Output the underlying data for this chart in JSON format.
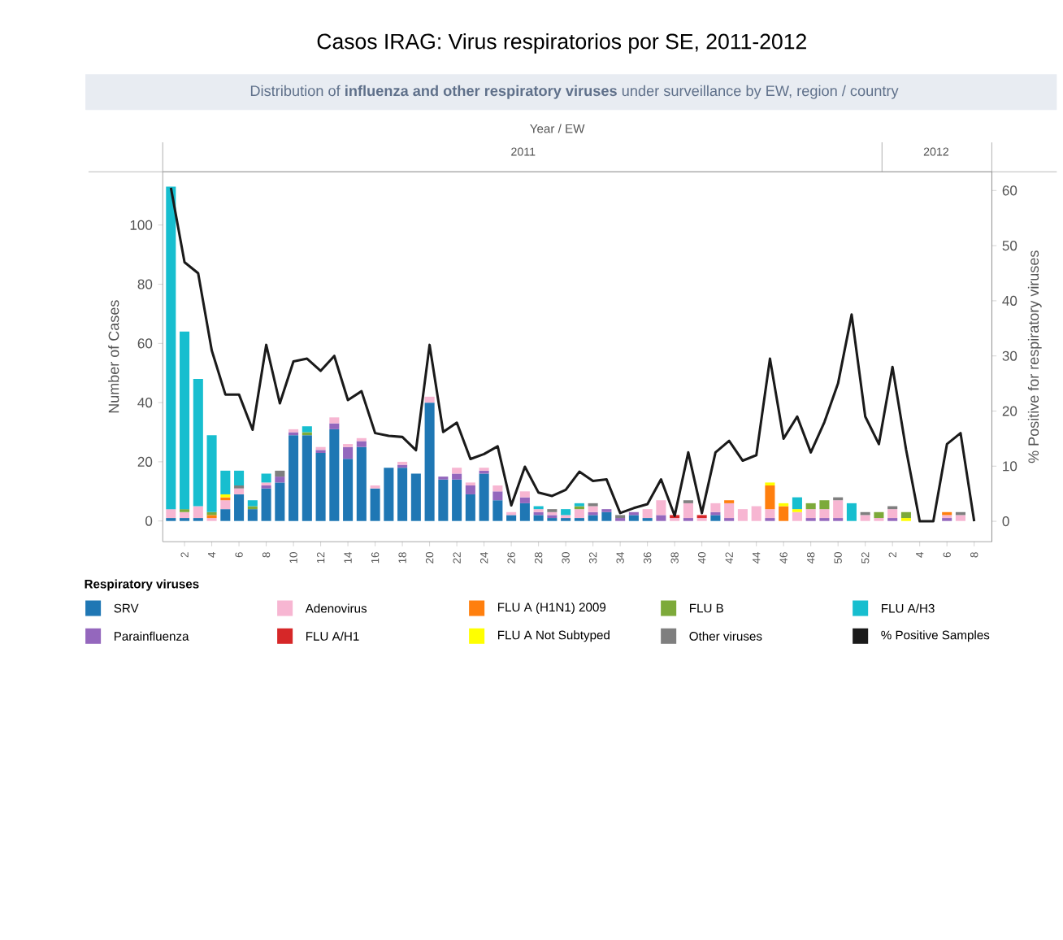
{
  "chart_data": {
    "type": "bar",
    "stacked": true,
    "title": "Casos IRAG: Virus respiratorios por SE, 2011-2012",
    "subtitle": "Distribution of **influenza and other respiratory viruses** under surveillance by EW, region / country",
    "xlabel": "Year / EW",
    "ylabel": "Number of Cases",
    "y2label": "% Positive for respiratory viruses",
    "legend_title": "Respiratory viruses",
    "legend": "bottom",
    "annotations": [
      "2011",
      "2012"
    ],
    "categories": [
      null,
      "2",
      null,
      "4",
      null,
      "6",
      null,
      "8",
      null,
      "10",
      null,
      "12",
      null,
      "14",
      null,
      "16",
      null,
      "18",
      null,
      "20",
      null,
      "22",
      null,
      "24",
      null,
      "26",
      null,
      "28",
      null,
      "30",
      null,
      "32",
      null,
      "34",
      null,
      "36",
      null,
      "38",
      null,
      "40",
      null,
      "42",
      null,
      "44",
      null,
      "46",
      null,
      "48",
      null,
      "50",
      null,
      "52",
      null,
      "2",
      null,
      "4",
      null,
      "6",
      null,
      "8"
    ],
    "ylim": [
      -7,
      118
    ],
    "yticks": [
      0,
      20,
      40,
      60,
      80,
      100
    ],
    "y2lim": [
      -3.7,
      63.4
    ],
    "y2ticks": [
      0,
      10,
      20,
      30,
      40,
      50,
      60
    ],
    "series": [
      {
        "name": "SRV",
        "color": "#1f77b4",
        "values": [
          1,
          1,
          1,
          null,
          4,
          9,
          4,
          11,
          13,
          29,
          29,
          23,
          31,
          21,
          25,
          11,
          18,
          18,
          16,
          40,
          14,
          14,
          9,
          16,
          7,
          2,
          6,
          2,
          1,
          1,
          1,
          2,
          3,
          null,
          2,
          1,
          null,
          null,
          null,
          null,
          2,
          null,
          null,
          null,
          null,
          null,
          null,
          null,
          null,
          null,
          null,
          null,
          null,
          null,
          null,
          null,
          null,
          null,
          null,
          null
        ]
      },
      {
        "name": "Parainfluenza",
        "color": "#9467bd",
        "values": [
          null,
          null,
          null,
          null,
          null,
          null,
          null,
          1,
          2,
          1,
          null,
          1,
          2,
          4,
          2,
          null,
          null,
          1,
          null,
          null,
          1,
          2,
          3,
          1,
          3,
          null,
          2,
          1,
          1,
          null,
          null,
          1,
          1,
          1,
          1,
          null,
          2,
          null,
          1,
          null,
          1,
          1,
          null,
          null,
          1,
          null,
          null,
          1,
          1,
          1,
          null,
          null,
          null,
          1,
          null,
          null,
          null,
          1,
          null,
          null
        ]
      },
      {
        "name": "Adenovirus",
        "color": "#f7b6d2",
        "values": [
          3,
          2,
          4,
          1,
          3,
          2,
          null,
          1,
          null,
          1,
          null,
          1,
          2,
          1,
          1,
          1,
          null,
          1,
          null,
          2,
          null,
          2,
          1,
          1,
          2,
          1,
          2,
          1,
          1,
          1,
          3,
          2,
          null,
          null,
          null,
          3,
          5,
          1,
          5,
          1,
          3,
          5,
          4,
          5,
          3,
          null,
          3,
          3,
          3,
          6,
          null,
          2,
          1,
          3,
          null,
          null,
          null,
          1,
          2,
          null
        ]
      },
      {
        "name": "FLU A/H1",
        "color": "#d62728",
        "values": [
          null,
          null,
          null,
          null,
          null,
          null,
          null,
          null,
          null,
          null,
          null,
          null,
          null,
          null,
          null,
          null,
          null,
          null,
          null,
          null,
          null,
          null,
          null,
          null,
          null,
          null,
          null,
          null,
          null,
          null,
          null,
          null,
          null,
          null,
          null,
          null,
          null,
          1,
          null,
          1,
          null,
          null,
          null,
          null,
          null,
          null,
          null,
          null,
          null,
          null,
          null,
          null,
          null,
          null,
          null,
          null,
          null,
          null,
          null,
          null
        ]
      },
      {
        "name": "FLU A (H1N1) 2009",
        "color": "#ff7f0e",
        "values": [
          null,
          null,
          null,
          1,
          1,
          null,
          null,
          null,
          null,
          null,
          null,
          null,
          null,
          null,
          null,
          null,
          null,
          null,
          null,
          null,
          null,
          null,
          null,
          null,
          null,
          null,
          null,
          null,
          null,
          null,
          null,
          null,
          null,
          null,
          null,
          null,
          null,
          null,
          null,
          null,
          null,
          1,
          null,
          null,
          8,
          5,
          null,
          null,
          null,
          null,
          null,
          null,
          null,
          null,
          null,
          null,
          null,
          1,
          null,
          null
        ]
      },
      {
        "name": "FLU A Not Subtyped",
        "color": "#ffff00",
        "values": [
          null,
          null,
          null,
          null,
          1,
          null,
          null,
          null,
          null,
          null,
          null,
          null,
          null,
          null,
          null,
          null,
          null,
          null,
          null,
          null,
          null,
          null,
          null,
          null,
          null,
          null,
          null,
          null,
          null,
          null,
          null,
          null,
          null,
          null,
          null,
          null,
          null,
          null,
          null,
          null,
          null,
          null,
          null,
          null,
          1,
          1,
          1,
          null,
          null,
          null,
          null,
          null,
          null,
          null,
          1,
          null,
          null,
          null,
          null,
          null
        ]
      },
      {
        "name": "FLU B",
        "color": "#7daa3a",
        "values": [
          null,
          1,
          null,
          1,
          null,
          null,
          1,
          null,
          null,
          null,
          1,
          null,
          null,
          null,
          null,
          null,
          null,
          null,
          null,
          null,
          null,
          null,
          null,
          null,
          null,
          null,
          null,
          null,
          null,
          null,
          1,
          null,
          null,
          null,
          null,
          null,
          null,
          null,
          null,
          null,
          null,
          null,
          null,
          null,
          null,
          null,
          null,
          2,
          3,
          null,
          null,
          null,
          2,
          null,
          2,
          null,
          null,
          null,
          null,
          null
        ]
      },
      {
        "name": "Other viruses",
        "color": "#7f7f7f",
        "values": [
          null,
          null,
          null,
          null,
          null,
          1,
          null,
          null,
          2,
          null,
          null,
          null,
          null,
          null,
          null,
          null,
          null,
          null,
          null,
          null,
          null,
          null,
          null,
          null,
          null,
          null,
          null,
          null,
          1,
          null,
          null,
          1,
          null,
          1,
          null,
          null,
          null,
          null,
          1,
          null,
          null,
          null,
          null,
          null,
          null,
          null,
          null,
          null,
          null,
          1,
          null,
          1,
          null,
          1,
          null,
          null,
          null,
          null,
          1,
          null
        ]
      },
      {
        "name": "FLU A/H3",
        "color": "#17becf",
        "values": [
          109,
          60,
          43,
          26,
          8,
          5,
          2,
          3,
          null,
          null,
          2,
          null,
          null,
          null,
          null,
          null,
          null,
          null,
          null,
          null,
          null,
          null,
          null,
          null,
          null,
          null,
          null,
          1,
          null,
          2,
          1,
          null,
          null,
          null,
          null,
          null,
          null,
          null,
          null,
          null,
          null,
          null,
          null,
          null,
          null,
          null,
          4,
          null,
          null,
          null,
          6,
          null,
          null,
          null,
          null,
          null,
          null,
          null,
          null,
          null
        ]
      },
      {
        "name": "% Positive Samples",
        "type": "line",
        "axis": "y2",
        "color": "#1a1a1a",
        "values": [
          60.5,
          47,
          45,
          31,
          23,
          23,
          16.6,
          32,
          21.4,
          29,
          29.5,
          27.3,
          30,
          22,
          23.6,
          16,
          15.5,
          15.3,
          12.9,
          32,
          16.2,
          17.9,
          11.3,
          12.2,
          13.6,
          2.9,
          9.9,
          5.2,
          4.6,
          5.7,
          9,
          7.3,
          7.6,
          1.5,
          2.4,
          3.1,
          7.6,
          1,
          12.5,
          1.5,
          12.5,
          14.6,
          11,
          12,
          29.5,
          15,
          19,
          12.5,
          18,
          25,
          37.5,
          19,
          14,
          28,
          13,
          0,
          0,
          14,
          16,
          0
        ]
      }
    ]
  }
}
